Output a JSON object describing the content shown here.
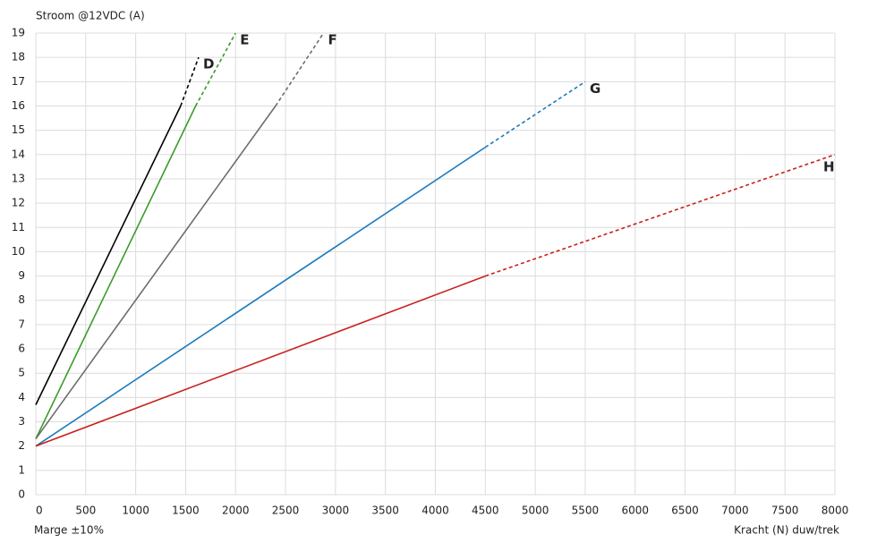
{
  "chart_data": {
    "type": "line",
    "y_label": "Stroom @12VDC (A)",
    "x_label": "Kracht (N) duw/trek",
    "note": "Marge ±10%",
    "xlim": [
      0,
      8000
    ],
    "xticks": [
      0,
      500,
      1000,
      1500,
      2000,
      2500,
      3000,
      3500,
      4000,
      4500,
      5000,
      5500,
      6000,
      6500,
      7000,
      7500,
      8000
    ],
    "ylim": [
      0,
      19
    ],
    "yticks": [
      0,
      1,
      2,
      3,
      4,
      5,
      6,
      7,
      8,
      9,
      10,
      11,
      12,
      13,
      14,
      15,
      16,
      17,
      18,
      19
    ],
    "grid": true,
    "series": [
      {
        "name": "D",
        "color": "#000000",
        "x": [
          0,
          1450,
          1630
        ],
        "values": [
          3.7,
          16,
          18
        ],
        "dash_from": 1
      },
      {
        "name": "E",
        "color": "#3a9a2a",
        "x": [
          0,
          1600,
          2000
        ],
        "values": [
          2.3,
          16,
          19
        ],
        "dash_from": 1
      },
      {
        "name": "F",
        "color": "#6d6d6d",
        "x": [
          0,
          2400,
          2880
        ],
        "values": [
          2.3,
          16,
          19
        ],
        "dash_from": 1
      },
      {
        "name": "G",
        "color": "#1a7abf",
        "x": [
          0,
          4500,
          5500
        ],
        "values": [
          2,
          14.3,
          17
        ],
        "dash_from": 1
      },
      {
        "name": "H",
        "color": "#c8201e",
        "x": [
          0,
          4500,
          8000
        ],
        "values": [
          2,
          9,
          14
        ],
        "dash_from": 1
      }
    ]
  }
}
